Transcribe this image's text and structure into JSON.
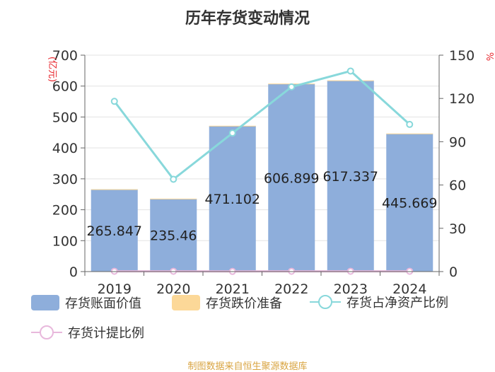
{
  "chart_data": {
    "type": "bar",
    "title": "历年存货变动情况",
    "categories": [
      "2019",
      "2020",
      "2021",
      "2022",
      "2023",
      "2024"
    ],
    "y_left": {
      "label": "(亿元)",
      "min": 0,
      "max": 700,
      "ticks": [
        0,
        100,
        200,
        300,
        400,
        500,
        600,
        700
      ]
    },
    "y_right": {
      "label": "%",
      "min": 0,
      "max": 150,
      "ticks": [
        0,
        30,
        60,
        90,
        120,
        150
      ]
    },
    "series": [
      {
        "name": "存货账面价值",
        "kind": "bar",
        "axis": "left",
        "color": "#8eaedb",
        "values": [
          265.847,
          235.46,
          471.102,
          606.899,
          617.337,
          445.669
        ],
        "labels": [
          "265.847",
          "235.46",
          "471.102",
          "606.899",
          "617.337",
          "445.669"
        ]
      },
      {
        "name": "存货跌价准备",
        "kind": "bar",
        "axis": "left",
        "color": "#fcd898",
        "values": [
          0.5,
          0.5,
          0.6,
          1.2,
          1.2,
          1.0
        ]
      },
      {
        "name": "存货占净资产比例",
        "kind": "line",
        "axis": "right",
        "color": "#88d8db",
        "values": [
          118,
          64,
          96,
          128,
          139,
          102
        ]
      },
      {
        "name": "存货计提比例",
        "kind": "line",
        "axis": "right",
        "color": "#e8b8dc",
        "values": [
          0.2,
          0.2,
          0.1,
          0.2,
          0.2,
          0.2
        ]
      }
    ],
    "grid": true,
    "legend_position": "bottom"
  },
  "source_note": "制图数据来自恒生聚源数据库"
}
